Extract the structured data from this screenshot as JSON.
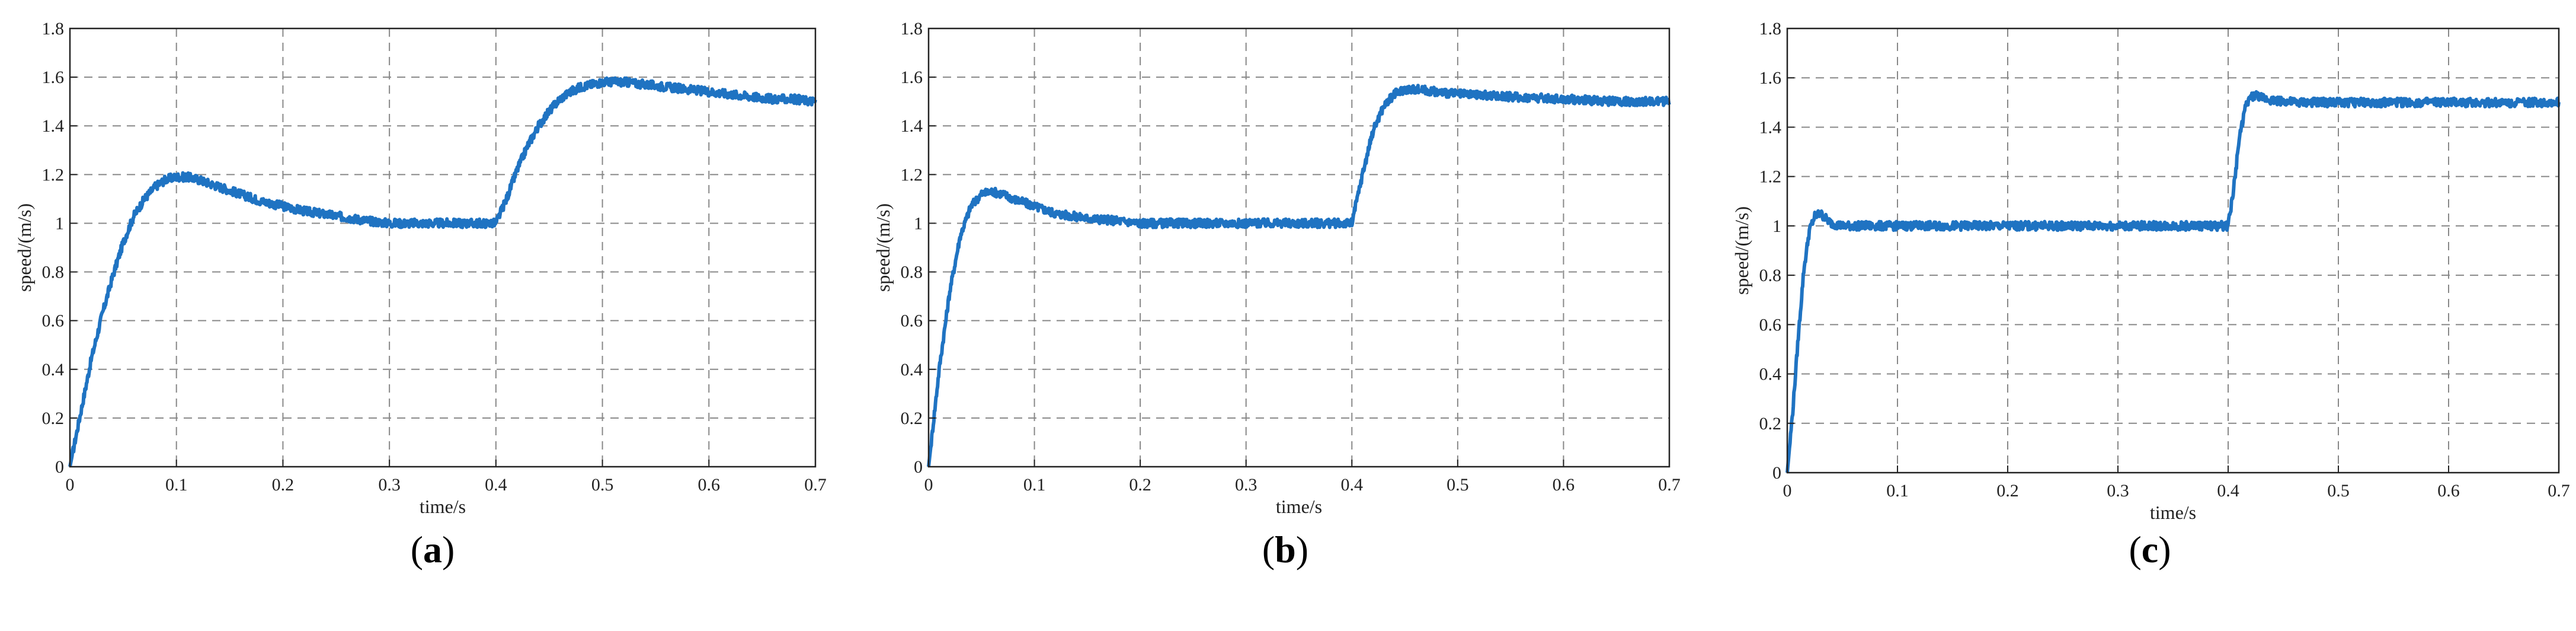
{
  "chart_data": [
    {
      "type": "line",
      "panel_label": "a",
      "xlabel": "time/s",
      "ylabel": "speed/(m/s)",
      "xlim": [
        0,
        0.7
      ],
      "ylim": [
        0,
        1.8
      ],
      "xticks": [
        "0",
        "0.1",
        "0.2",
        "0.3",
        "0.4",
        "0.5",
        "0.6",
        "0.7"
      ],
      "yticks": [
        "0",
        "0.2",
        "0.4",
        "0.6",
        "0.8",
        "1",
        "1.2",
        "1.4",
        "1.6",
        "1.8"
      ],
      "grid": true,
      "color": "#1f73c2",
      "series": [
        {
          "x": [
            0,
            0.01,
            0.02,
            0.03,
            0.04,
            0.05,
            0.06,
            0.07,
            0.08,
            0.09,
            0.1,
            0.11,
            0.12,
            0.14,
            0.16,
            0.18,
            0.2,
            0.22,
            0.25,
            0.28,
            0.3,
            0.33,
            0.36,
            0.39,
            0.4,
            0.41,
            0.42,
            0.43,
            0.44,
            0.45,
            0.46,
            0.47,
            0.48,
            0.49,
            0.5,
            0.51,
            0.52,
            0.54,
            0.56,
            0.58,
            0.6,
            0.62,
            0.64,
            0.66,
            0.68,
            0.7
          ],
          "y": [
            0,
            0.22,
            0.44,
            0.62,
            0.78,
            0.92,
            1.03,
            1.1,
            1.15,
            1.18,
            1.19,
            1.19,
            1.18,
            1.15,
            1.12,
            1.09,
            1.07,
            1.05,
            1.03,
            1.01,
            1.0,
            1.0,
            1.0,
            1.0,
            1.0,
            1.1,
            1.22,
            1.32,
            1.4,
            1.46,
            1.51,
            1.54,
            1.56,
            1.57,
            1.58,
            1.58,
            1.58,
            1.57,
            1.56,
            1.55,
            1.54,
            1.53,
            1.52,
            1.51,
            1.51,
            1.5
          ]
        }
      ]
    },
    {
      "type": "line",
      "panel_label": "b",
      "xlabel": "time/s",
      "ylabel": "speed/(m/s)",
      "xlim": [
        0,
        0.7
      ],
      "ylim": [
        0,
        1.8
      ],
      "xticks": [
        "0",
        "0.1",
        "0.2",
        "0.3",
        "0.4",
        "0.5",
        "0.6",
        "0.7"
      ],
      "yticks": [
        "0",
        "0.2",
        "0.4",
        "0.6",
        "0.8",
        "1",
        "1.2",
        "1.4",
        "1.6",
        "1.8"
      ],
      "grid": true,
      "color": "#1f73c2",
      "series": [
        {
          "x": [
            0,
            0.005,
            0.01,
            0.02,
            0.03,
            0.04,
            0.05,
            0.06,
            0.07,
            0.08,
            0.1,
            0.12,
            0.15,
            0.18,
            0.2,
            0.25,
            0.3,
            0.35,
            0.4,
            0.41,
            0.42,
            0.43,
            0.44,
            0.45,
            0.46,
            0.48,
            0.5,
            0.55,
            0.6,
            0.65,
            0.7
          ],
          "y": [
            0,
            0.2,
            0.4,
            0.72,
            0.95,
            1.07,
            1.12,
            1.13,
            1.12,
            1.1,
            1.07,
            1.04,
            1.02,
            1.01,
            1.0,
            1.0,
            1.0,
            1.0,
            1.0,
            1.2,
            1.38,
            1.48,
            1.53,
            1.55,
            1.55,
            1.54,
            1.53,
            1.52,
            1.51,
            1.5,
            1.5
          ]
        }
      ]
    },
    {
      "type": "line",
      "panel_label": "c",
      "xlabel": "time/s",
      "ylabel": "speed/(m/s)",
      "xlim": [
        0,
        0.7
      ],
      "ylim": [
        0,
        1.8
      ],
      "xticks": [
        "0",
        "0.1",
        "0.2",
        "0.3",
        "0.4",
        "0.5",
        "0.6",
        "0.7"
      ],
      "yticks": [
        "0",
        "0.2",
        "0.4",
        "0.6",
        "0.8",
        "1",
        "1.2",
        "1.4",
        "1.6",
        "1.8"
      ],
      "grid": true,
      "color": "#1f73c2",
      "series": [
        {
          "x": [
            0,
            0.005,
            0.01,
            0.015,
            0.02,
            0.025,
            0.03,
            0.035,
            0.04,
            0.05,
            0.06,
            0.08,
            0.1,
            0.2,
            0.3,
            0.4,
            0.405,
            0.41,
            0.415,
            0.42,
            0.425,
            0.43,
            0.44,
            0.46,
            0.5,
            0.6,
            0.7
          ],
          "y": [
            0,
            0.25,
            0.55,
            0.82,
            0.98,
            1.04,
            1.05,
            1.03,
            1.01,
            1.0,
            1.0,
            1.0,
            1.0,
            1.0,
            1.0,
            1.0,
            1.15,
            1.35,
            1.47,
            1.52,
            1.53,
            1.52,
            1.51,
            1.5,
            1.5,
            1.5,
            1.5
          ]
        }
      ]
    }
  ]
}
